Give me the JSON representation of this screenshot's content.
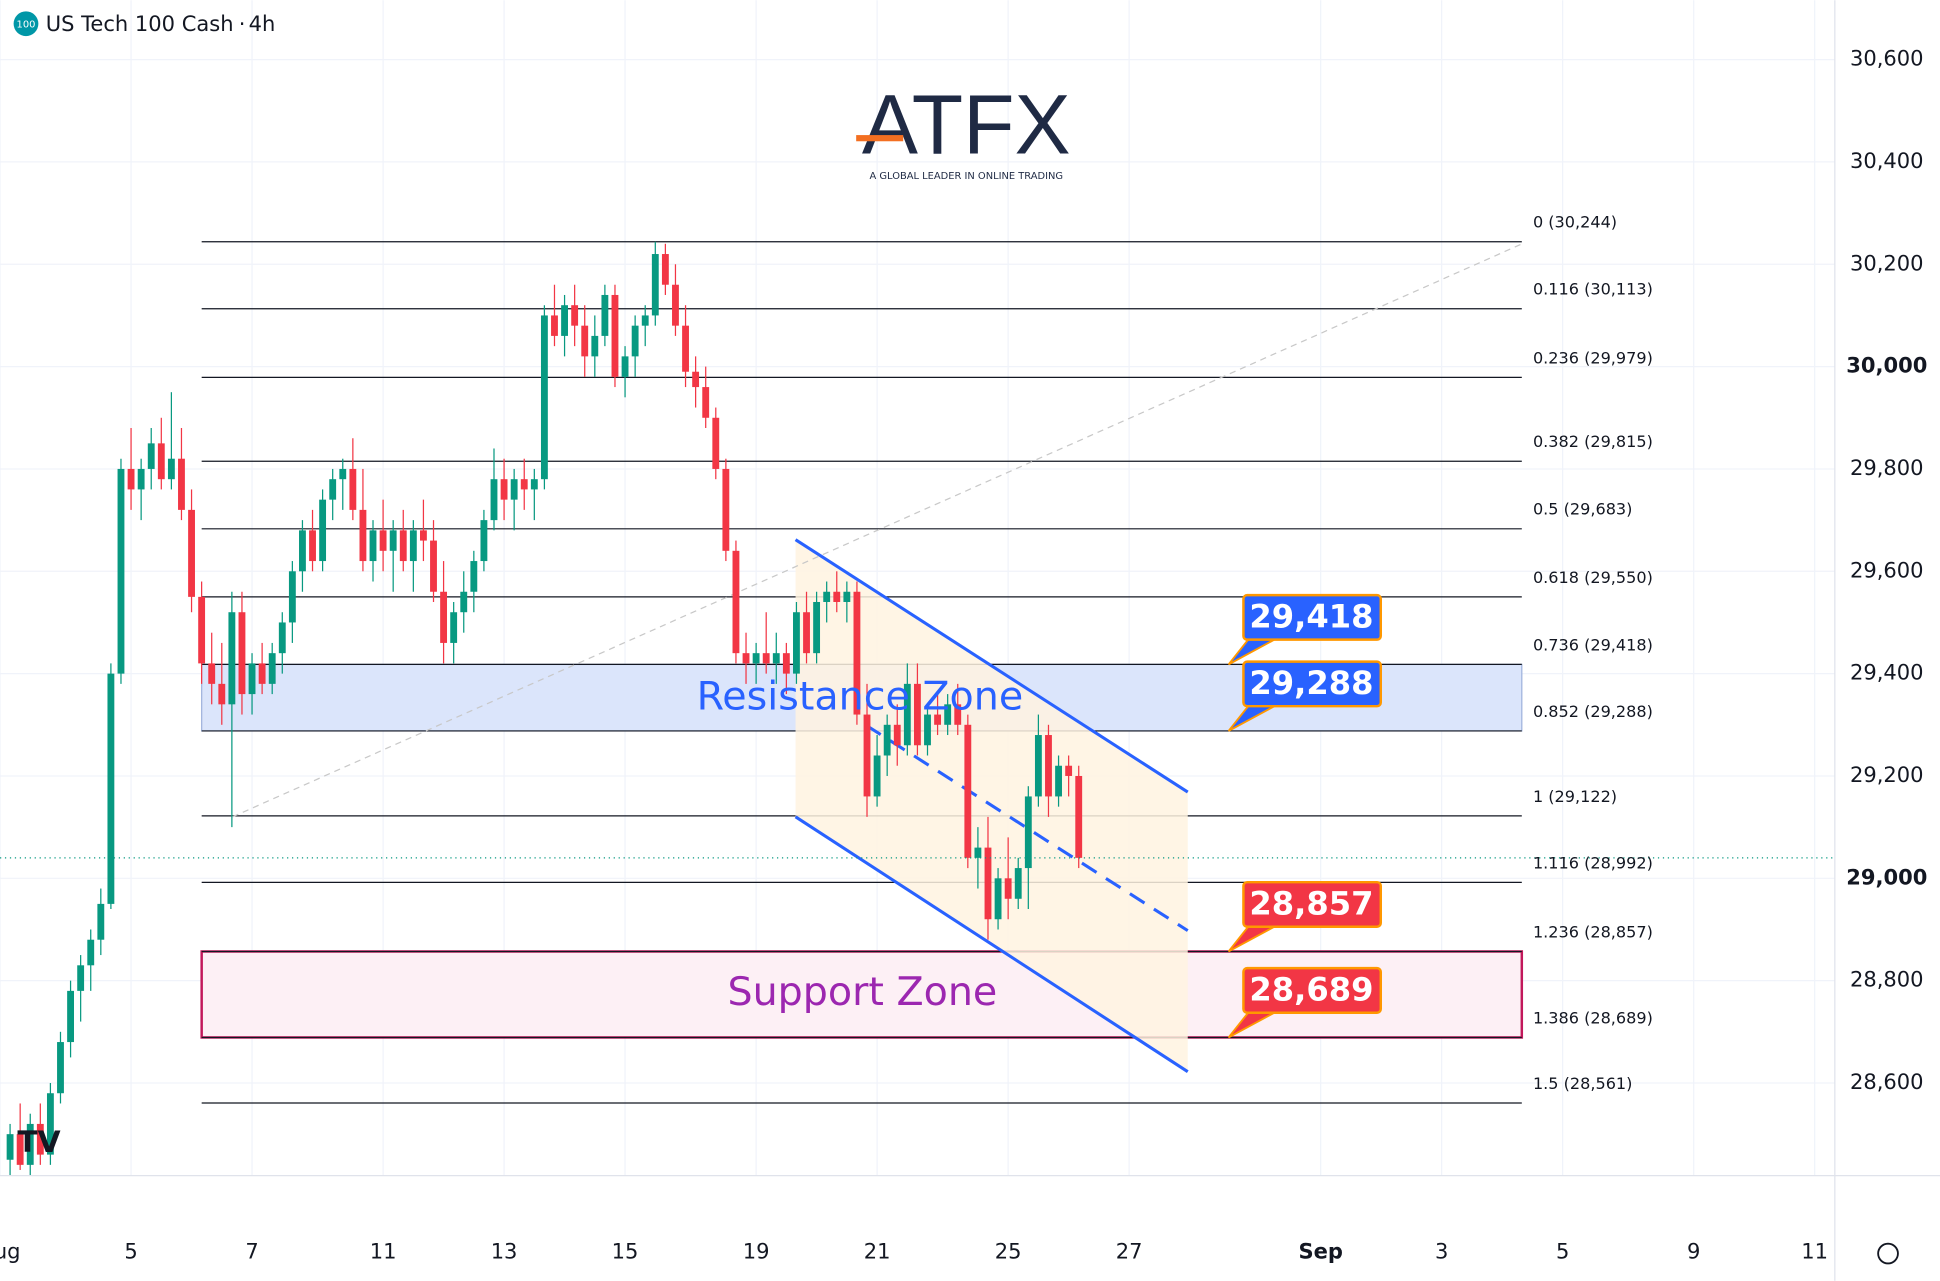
{
  "chart_data": {
    "type": "candlestick",
    "title": "US Tech 100 Cash",
    "interval": "4h",
    "symbol_badge": "100",
    "logo": {
      "name": "ATFX",
      "tagline": "A GLOBAL LEADER IN ONLINE TRADING"
    },
    "up_color": "#089981",
    "down_color": "#f23645",
    "grid": true,
    "xlim": [
      0,
      182
    ],
    "ylim": [
      28419,
      30716
    ],
    "xticks": [
      {
        "value": 0,
        "label": "Aug"
      },
      {
        "value": 13,
        "label": "5"
      },
      {
        "value": 25,
        "label": "7"
      },
      {
        "value": 38,
        "label": "11"
      },
      {
        "value": 50,
        "label": "13"
      },
      {
        "value": 62,
        "label": "15"
      },
      {
        "value": 75,
        "label": "19"
      },
      {
        "value": 87,
        "label": "21"
      },
      {
        "value": 100,
        "label": "25"
      },
      {
        "value": 112,
        "label": "27"
      },
      {
        "value": 131,
        "label": "Sep"
      },
      {
        "value": 143,
        "label": "3"
      },
      {
        "value": 155,
        "label": "5"
      },
      {
        "value": 168,
        "label": "9"
      },
      {
        "value": 180,
        "label": "11"
      }
    ],
    "yticks": [
      {
        "value": 30600,
        "label": "30,600"
      },
      {
        "value": 30400,
        "label": "30,400"
      },
      {
        "value": 30200,
        "label": "30,200"
      },
      {
        "value": 30000,
        "label": "30,000"
      },
      {
        "value": 29800,
        "label": "29,800"
      },
      {
        "value": 29600,
        "label": "29,600"
      },
      {
        "value": 29400,
        "label": "29,400"
      },
      {
        "value": 29200,
        "label": "29,200"
      },
      {
        "value": 29000,
        "label": "29,000"
      },
      {
        "value": 28800,
        "label": "28,800"
      },
      {
        "value": 28600,
        "label": "28,600"
      }
    ],
    "bold_yticks": [
      30000,
      29000
    ],
    "x": [
      1,
      2,
      3,
      4,
      5,
      6,
      7,
      8,
      9,
      10,
      11,
      12,
      13,
      14,
      15,
      16,
      17,
      18,
      19,
      20,
      21,
      22,
      23,
      24,
      25,
      26,
      27,
      28,
      29,
      30,
      31,
      32,
      33,
      34,
      35,
      36,
      37,
      38,
      39,
      40,
      41,
      42,
      43,
      44,
      45,
      46,
      47,
      48,
      49,
      50,
      51,
      52,
      53,
      54,
      55,
      56,
      57,
      58,
      59,
      60,
      61,
      62,
      63,
      64,
      65,
      66,
      67,
      68,
      69,
      70,
      71,
      72,
      73,
      74,
      75,
      76,
      77,
      78,
      79,
      80,
      81,
      82,
      83,
      84,
      85,
      86,
      87,
      88,
      89,
      90,
      91,
      92,
      93,
      94,
      95,
      96,
      97,
      98,
      99,
      100,
      101,
      102,
      103,
      104,
      105,
      106,
      107
    ],
    "ohlc": [
      [
        28450,
        28520,
        28420,
        28500
      ],
      [
        28500,
        28560,
        28430,
        28440
      ],
      [
        28440,
        28540,
        28420,
        28520
      ],
      [
        28520,
        28560,
        28440,
        28460
      ],
      [
        28460,
        28600,
        28440,
        28580
      ],
      [
        28580,
        28700,
        28560,
        28680
      ],
      [
        28680,
        28800,
        28650,
        28780
      ],
      [
        28780,
        28850,
        28720,
        28830
      ],
      [
        28830,
        28900,
        28780,
        28880
      ],
      [
        28880,
        28980,
        28850,
        28950
      ],
      [
        28950,
        29420,
        28940,
        29400
      ],
      [
        29400,
        29820,
        29380,
        29800
      ],
      [
        29800,
        29880,
        29720,
        29760
      ],
      [
        29760,
        29820,
        29700,
        29800
      ],
      [
        29800,
        29880,
        29760,
        29850
      ],
      [
        29850,
        29900,
        29760,
        29780
      ],
      [
        29780,
        29950,
        29760,
        29820
      ],
      [
        29820,
        29880,
        29700,
        29720
      ],
      [
        29720,
        29760,
        29520,
        29550
      ],
      [
        29550,
        29580,
        29380,
        29420
      ],
      [
        29420,
        29480,
        29340,
        29380
      ],
      [
        29380,
        29460,
        29300,
        29340
      ],
      [
        29340,
        29560,
        29100,
        29520
      ],
      [
        29520,
        29560,
        29320,
        29360
      ],
      [
        29360,
        29440,
        29320,
        29420
      ],
      [
        29420,
        29460,
        29360,
        29380
      ],
      [
        29380,
        29460,
        29360,
        29440
      ],
      [
        29440,
        29520,
        29400,
        29500
      ],
      [
        29500,
        29620,
        29460,
        29600
      ],
      [
        29600,
        29700,
        29560,
        29680
      ],
      [
        29680,
        29720,
        29600,
        29620
      ],
      [
        29620,
        29760,
        29600,
        29740
      ],
      [
        29740,
        29800,
        29700,
        29780
      ],
      [
        29780,
        29820,
        29720,
        29800
      ],
      [
        29800,
        29860,
        29700,
        29720
      ],
      [
        29720,
        29800,
        29600,
        29620
      ],
      [
        29620,
        29700,
        29580,
        29680
      ],
      [
        29680,
        29740,
        29600,
        29640
      ],
      [
        29640,
        29700,
        29560,
        29680
      ],
      [
        29680,
        29720,
        29600,
        29620
      ],
      [
        29620,
        29700,
        29560,
        29680
      ],
      [
        29680,
        29740,
        29620,
        29660
      ],
      [
        29660,
        29700,
        29540,
        29560
      ],
      [
        29560,
        29620,
        29420,
        29460
      ],
      [
        29460,
        29540,
        29420,
        29520
      ],
      [
        29520,
        29600,
        29480,
        29560
      ],
      [
        29560,
        29640,
        29520,
        29620
      ],
      [
        29620,
        29720,
        29600,
        29700
      ],
      [
        29700,
        29840,
        29680,
        29780
      ],
      [
        29780,
        29820,
        29700,
        29740
      ],
      [
        29740,
        29800,
        29680,
        29780
      ],
      [
        29780,
        29820,
        29720,
        29760
      ],
      [
        29760,
        29800,
        29700,
        29780
      ],
      [
        29780,
        30120,
        29760,
        30100
      ],
      [
        30100,
        30160,
        30040,
        30060
      ],
      [
        30060,
        30140,
        30020,
        30120
      ],
      [
        30120,
        30160,
        30040,
        30080
      ],
      [
        30080,
        30120,
        29980,
        30020
      ],
      [
        30020,
        30100,
        29980,
        30060
      ],
      [
        30060,
        30160,
        30040,
        30140
      ],
      [
        30140,
        30160,
        29960,
        29980
      ],
      [
        29980,
        30040,
        29940,
        30020
      ],
      [
        30020,
        30100,
        29980,
        30080
      ],
      [
        30080,
        30120,
        30040,
        30100
      ],
      [
        30100,
        30244,
        30080,
        30220
      ],
      [
        30220,
        30240,
        30140,
        30160
      ],
      [
        30160,
        30200,
        30060,
        30080
      ],
      [
        30080,
        30120,
        29960,
        29990
      ],
      [
        29990,
        30020,
        29920,
        29960
      ],
      [
        29960,
        30000,
        29880,
        29900
      ],
      [
        29900,
        29920,
        29780,
        29800
      ],
      [
        29800,
        29820,
        29620,
        29640
      ],
      [
        29640,
        29660,
        29420,
        29440
      ],
      [
        29440,
        29480,
        29380,
        29420
      ],
      [
        29420,
        29460,
        29380,
        29440
      ],
      [
        29440,
        29520,
        29400,
        29420
      ],
      [
        29420,
        29480,
        29380,
        29440
      ],
      [
        29440,
        29460,
        29360,
        29400
      ],
      [
        29400,
        29540,
        29380,
        29520
      ],
      [
        29520,
        29560,
        29420,
        29440
      ],
      [
        29440,
        29560,
        29420,
        29540
      ],
      [
        29540,
        29580,
        29500,
        29560
      ],
      [
        29560,
        29600,
        29520,
        29540
      ],
      [
        29540,
        29580,
        29500,
        29560
      ],
      [
        29560,
        29580,
        29300,
        29320
      ],
      [
        29320,
        29380,
        29120,
        29160
      ],
      [
        29160,
        29280,
        29140,
        29240
      ],
      [
        29240,
        29320,
        29200,
        29300
      ],
      [
        29300,
        29340,
        29220,
        29260
      ],
      [
        29260,
        29420,
        29240,
        29380
      ],
      [
        29380,
        29420,
        29240,
        29260
      ],
      [
        29260,
        29340,
        29240,
        29320
      ],
      [
        29320,
        29360,
        29280,
        29300
      ],
      [
        29300,
        29360,
        29280,
        29340
      ],
      [
        29340,
        29380,
        29280,
        29300
      ],
      [
        29300,
        29320,
        29020,
        29040
      ],
      [
        29040,
        29100,
        28980,
        29060
      ],
      [
        29060,
        29120,
        28880,
        28920
      ],
      [
        28920,
        29020,
        28900,
        29000
      ],
      [
        29000,
        29080,
        28920,
        28960
      ],
      [
        28960,
        29040,
        28940,
        29020
      ],
      [
        29020,
        29180,
        28940,
        29160
      ],
      [
        29160,
        29320,
        29140,
        29280
      ],
      [
        29280,
        29300,
        29120,
        29160
      ],
      [
        29160,
        29240,
        29140,
        29220
      ],
      [
        29220,
        29240,
        29160,
        29200
      ],
      [
        29200,
        29220,
        29020,
        29040
      ]
    ],
    "fib_levels": [
      {
        "value": 30244,
        "label": "0 (30,244)"
      },
      {
        "value": 30113,
        "label": "0.116 (30,113)"
      },
      {
        "value": 29979,
        "label": "0.236 (29,979)"
      },
      {
        "value": 29815,
        "label": "0.382 (29,815)"
      },
      {
        "value": 29683,
        "label": "0.5 (29,683)"
      },
      {
        "value": 29550,
        "label": "0.618 (29,550)"
      },
      {
        "value": 29418,
        "label": "0.736 (29,418)"
      },
      {
        "value": 29288,
        "label": "0.852 (29,288)"
      },
      {
        "value": 29122,
        "label": "1 (29,122)"
      },
      {
        "value": 28992,
        "label": "1.116 (28,992)"
      },
      {
        "value": 28857,
        "label": "1.236 (28,857)"
      },
      {
        "value": 28689,
        "label": "1.386 (28,689)"
      },
      {
        "value": 28561,
        "label": "1.5 (28,561)"
      }
    ],
    "resistance_zone": {
      "label": "Resistance Zone",
      "range": [
        29288,
        29418
      ],
      "color": "#2962ff"
    },
    "support_zone": {
      "label": "Support Zone",
      "range": [
        28689,
        28857
      ],
      "color": "#9c27b0"
    },
    "price_callouts": [
      {
        "value": 29418,
        "label": "29,418",
        "color": "#2962ff"
      },
      {
        "value": 29288,
        "label": "29,288",
        "color": "#2962ff"
      },
      {
        "value": 28857,
        "label": "28,857",
        "color": "#f23645"
      },
      {
        "value": 28689,
        "label": "28,689",
        "color": "#f23645"
      }
    ]
  }
}
